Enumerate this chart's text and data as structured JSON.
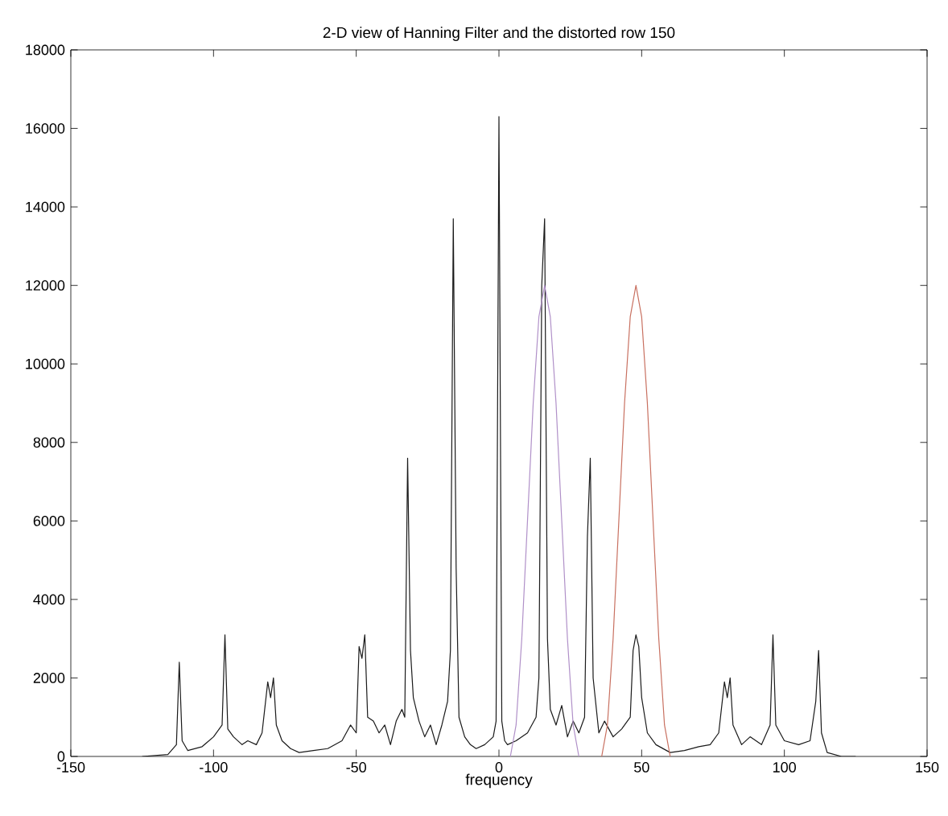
{
  "chart_data": {
    "type": "line",
    "title": "2-D view of Hanning Filter and the distorted row 150",
    "xlabel": "frequency",
    "series": [
      {
        "color": "#1a1a1a",
        "x": [
          -125,
          -116,
          -113,
          -112,
          -111,
          -109,
          -104,
          -100,
          -97,
          -96,
          -95,
          -93,
          -90,
          -88,
          -85,
          -83,
          -81,
          -80,
          -79,
          -78,
          -76,
          -73,
          -70,
          -65,
          -60,
          -55,
          -52,
          -50,
          -49,
          -48,
          -47,
          -46,
          -44,
          -42,
          -40,
          -38,
          -36,
          -34,
          -33,
          -32,
          -31,
          -30,
          -28,
          -26,
          -24,
          -22,
          -20,
          -18,
          -17,
          -16,
          -15,
          -14,
          -12,
          -10,
          -8,
          -5,
          -2,
          -1,
          0,
          1,
          2,
          3,
          6,
          10,
          13,
          14,
          15,
          16,
          17,
          18,
          20,
          22,
          24,
          26,
          28,
          30,
          31,
          32,
          33,
          35,
          37,
          40,
          43,
          46,
          47,
          48,
          49,
          50,
          52,
          55,
          60,
          65,
          70,
          74,
          77,
          79,
          80,
          81,
          82,
          85,
          88,
          92,
          95,
          96,
          97,
          100,
          105,
          109,
          111,
          112,
          113,
          115,
          120,
          125
        ],
        "values": [
          0,
          50,
          300,
          2400,
          400,
          150,
          250,
          500,
          800,
          3100,
          700,
          500,
          300,
          400,
          300,
          600,
          1900,
          1500,
          2000,
          800,
          400,
          200,
          100,
          150,
          200,
          400,
          800,
          600,
          2800,
          2500,
          3100,
          1000,
          900,
          600,
          800,
          300,
          900,
          1200,
          1000,
          7600,
          2700,
          1500,
          900,
          500,
          800,
          300,
          800,
          1400,
          2700,
          13700,
          4800,
          1000,
          500,
          300,
          200,
          300,
          500,
          900,
          16300,
          900,
          400,
          300,
          400,
          600,
          1000,
          2000,
          12000,
          13700,
          3000,
          1200,
          800,
          1300,
          500,
          900,
          600,
          1000,
          5600,
          7600,
          2000,
          600,
          900,
          500,
          700,
          1000,
          2700,
          3100,
          2800,
          1500,
          600,
          300,
          100,
          150,
          250,
          300,
          600,
          1900,
          1500,
          2000,
          800,
          300,
          500,
          300,
          800,
          3100,
          800,
          400,
          300,
          400,
          1400,
          2700,
          600,
          100,
          0,
          0
        ]
      },
      {
        "color": "#b090c8",
        "x": [
          4,
          6,
          8,
          10,
          12,
          14,
          16,
          18,
          20,
          22,
          24,
          26,
          28
        ],
        "values": [
          0,
          800,
          3000,
          6000,
          9000,
          11200,
          12000,
          11200,
          9000,
          6000,
          3000,
          800,
          0
        ]
      },
      {
        "color": "#c87060",
        "x": [
          36,
          38,
          40,
          42,
          44,
          46,
          48,
          50,
          52,
          54,
          56,
          58,
          60
        ],
        "values": [
          0,
          800,
          3000,
          6000,
          9000,
          11200,
          12000,
          11200,
          9000,
          6000,
          3000,
          800,
          0
        ]
      }
    ],
    "xlim": [
      -150,
      150
    ],
    "xticks": [
      -150,
      -100,
      -50,
      0,
      50,
      100,
      150
    ],
    "ylim": [
      0,
      18000
    ],
    "yticks": [
      0,
      2000,
      4000,
      6000,
      8000,
      10000,
      12000,
      14000,
      16000,
      18000
    ],
    "grid": false,
    "marker": "none",
    "line_style": "solid"
  }
}
